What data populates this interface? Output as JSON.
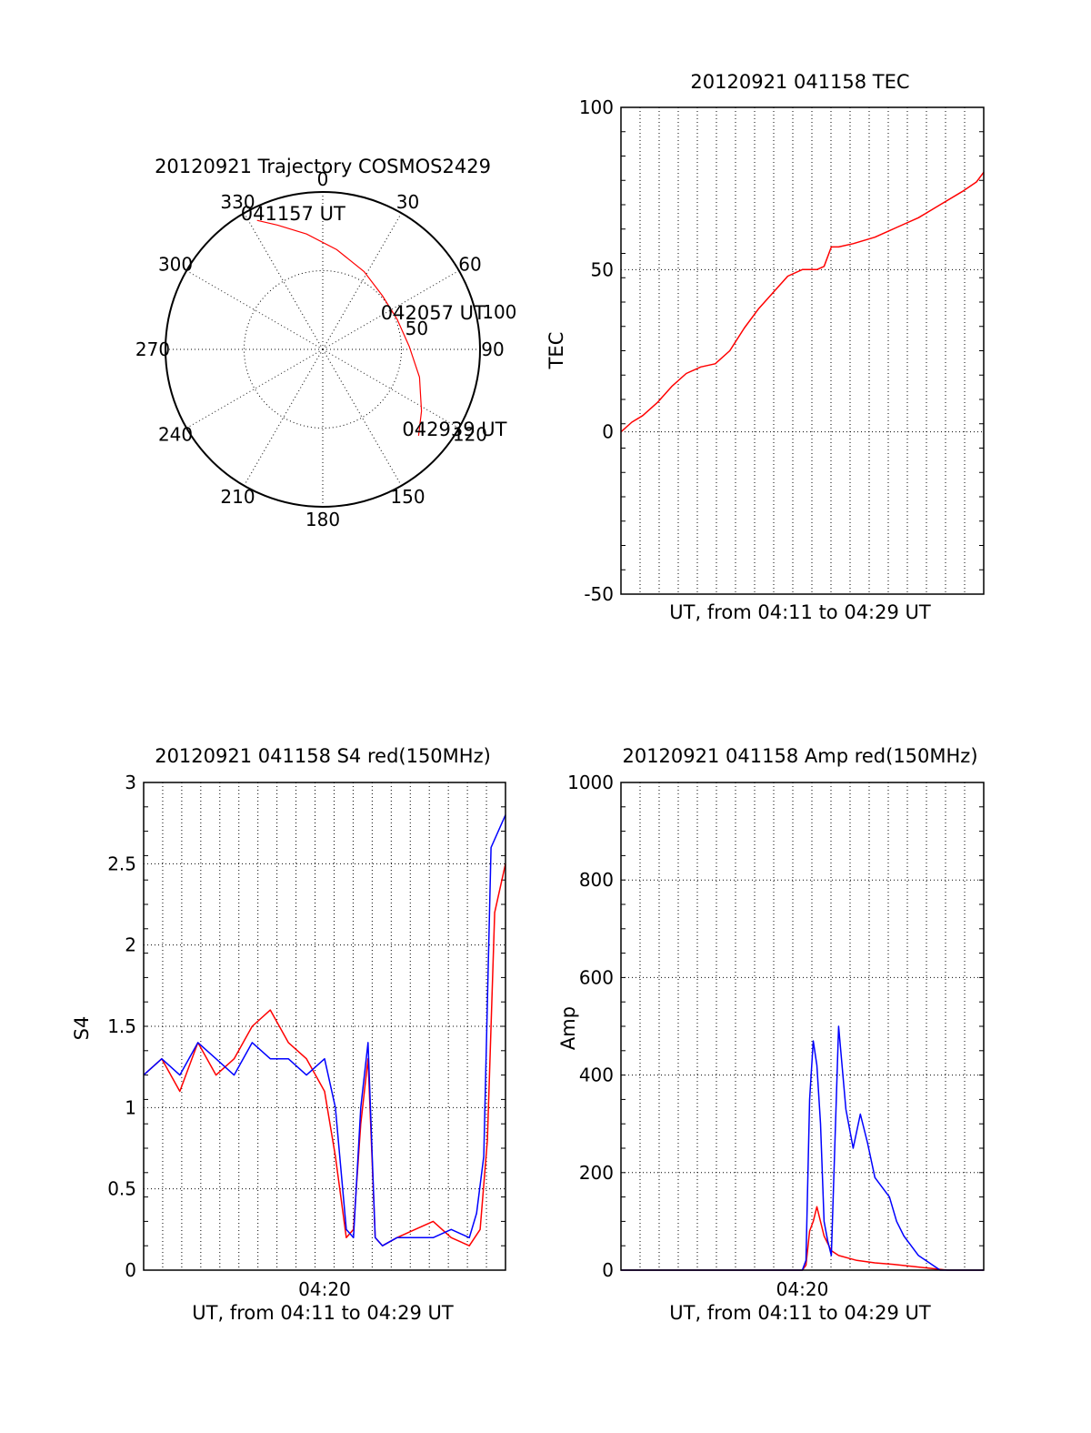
{
  "chart_data": [
    {
      "type": "polar",
      "title": "20120921 Trajectory COSMOS2429",
      "angle_labels": [
        "0",
        "30",
        "60",
        "90",
        "120",
        "150",
        "180",
        "210",
        "240",
        "270",
        "300",
        "330"
      ],
      "ring_labels": [
        "50",
        "100"
      ],
      "rlim": [
        0,
        100
      ],
      "grid": true,
      "series": [
        {
          "color": "#ff0000",
          "points": [
            [
              333,
              92
            ],
            [
              340,
              84
            ],
            [
              352,
              74
            ],
            [
              8,
              64
            ],
            [
              28,
              56
            ],
            [
              48,
              51
            ],
            [
              68,
              51
            ],
            [
              88,
              55
            ],
            [
              106,
              64
            ],
            [
              122,
              74
            ],
            [
              132,
              82
            ]
          ]
        }
      ],
      "annotations": [
        {
          "text": "041157 UT",
          "az": 333,
          "r": 92
        },
        {
          "text": "042057 UT",
          "az": 68,
          "r": 51
        },
        {
          "text": "042939 UT",
          "az": 132,
          "r": 82
        }
      ]
    },
    {
      "type": "line",
      "title": "20120921 041158 TEC",
      "ylabel": "TEC",
      "xlabel": "UT, from 04:11 to 04:29 UT",
      "ylim": [
        -50,
        100
      ],
      "yticks": [
        "-50",
        "0",
        "50",
        "100"
      ],
      "xlim": [
        0,
        1
      ],
      "grid": true,
      "series": [
        {
          "color": "#ff0000",
          "x": [
            0.0,
            0.03,
            0.06,
            0.1,
            0.14,
            0.18,
            0.22,
            0.26,
            0.3,
            0.34,
            0.38,
            0.42,
            0.46,
            0.5,
            0.54,
            0.56,
            0.58,
            0.6,
            0.64,
            0.7,
            0.76,
            0.82,
            0.88,
            0.94,
            0.98,
            1.0
          ],
          "y": [
            0,
            3,
            5,
            9,
            14,
            18,
            20,
            21,
            25,
            32,
            38,
            43,
            48,
            50,
            50,
            51,
            57,
            57,
            58,
            60,
            63,
            66,
            70,
            74,
            77,
            80
          ]
        }
      ]
    },
    {
      "type": "line",
      "title": "20120921 041158 S4 red(150MHz)",
      "ylabel": "S4",
      "xlabel": "UT, from 04:11 to 04:29 UT",
      "xtick_labels": [
        "04:20"
      ],
      "ylim": [
        0,
        3
      ],
      "yticks": [
        "0",
        "0.5",
        "1",
        "1.5",
        "2",
        "2.5",
        "3"
      ],
      "xlim": [
        0,
        1
      ],
      "grid": true,
      "series": [
        {
          "color": "#ff0000",
          "x": [
            0.0,
            0.05,
            0.1,
            0.15,
            0.2,
            0.25,
            0.3,
            0.35,
            0.4,
            0.45,
            0.5,
            0.53,
            0.56,
            0.58,
            0.6,
            0.62,
            0.64,
            0.66,
            0.7,
            0.75,
            0.8,
            0.85,
            0.9,
            0.93,
            0.95,
            0.97,
            1.0
          ],
          "y": [
            1.2,
            1.3,
            1.1,
            1.4,
            1.2,
            1.3,
            1.5,
            1.6,
            1.4,
            1.3,
            1.1,
            0.7,
            0.2,
            0.25,
            0.9,
            1.3,
            0.2,
            0.15,
            0.2,
            0.25,
            0.3,
            0.2,
            0.15,
            0.25,
            0.8,
            2.2,
            2.5
          ]
        },
        {
          "color": "#0000ff",
          "x": [
            0.0,
            0.05,
            0.1,
            0.15,
            0.2,
            0.25,
            0.3,
            0.35,
            0.4,
            0.45,
            0.5,
            0.53,
            0.56,
            0.58,
            0.6,
            0.62,
            0.64,
            0.66,
            0.7,
            0.75,
            0.8,
            0.85,
            0.9,
            0.92,
            0.94,
            0.96,
            1.0
          ],
          "y": [
            1.2,
            1.3,
            1.2,
            1.4,
            1.3,
            1.2,
            1.4,
            1.3,
            1.3,
            1.2,
            1.3,
            1.0,
            0.25,
            0.2,
            1.0,
            1.4,
            0.2,
            0.15,
            0.2,
            0.2,
            0.2,
            0.25,
            0.2,
            0.35,
            0.7,
            2.6,
            2.8
          ]
        }
      ]
    },
    {
      "type": "line",
      "title": "20120921 041158 Amp red(150MHz)",
      "ylabel": "Amp",
      "xlabel": "UT, from 04:11 to 04:29 UT",
      "xtick_labels": [
        "04:20"
      ],
      "ylim": [
        0,
        1000
      ],
      "yticks": [
        "0",
        "200",
        "400",
        "600",
        "800",
        "1000"
      ],
      "xlim": [
        0,
        1
      ],
      "grid": true,
      "series": [
        {
          "color": "#ff0000",
          "x": [
            0.0,
            0.5,
            0.51,
            0.52,
            0.53,
            0.54,
            0.56,
            0.58,
            0.6,
            0.65,
            0.7,
            0.75,
            0.8,
            0.85,
            0.9,
            1.0
          ],
          "y": [
            0,
            0,
            10,
            80,
            100,
            130,
            70,
            40,
            30,
            20,
            15,
            12,
            8,
            4,
            0,
            0
          ]
        },
        {
          "color": "#0000ff",
          "x": [
            0.0,
            0.5,
            0.51,
            0.52,
            0.53,
            0.54,
            0.55,
            0.56,
            0.57,
            0.58,
            0.6,
            0.62,
            0.64,
            0.66,
            0.68,
            0.7,
            0.72,
            0.74,
            0.76,
            0.78,
            0.8,
            0.82,
            0.84,
            0.86,
            0.88,
            0.9,
            1.0
          ],
          "y": [
            0,
            0,
            20,
            350,
            470,
            420,
            300,
            100,
            60,
            30,
            500,
            330,
            250,
            320,
            260,
            190,
            170,
            150,
            100,
            70,
            50,
            30,
            20,
            10,
            0,
            0,
            0
          ]
        }
      ]
    }
  ]
}
